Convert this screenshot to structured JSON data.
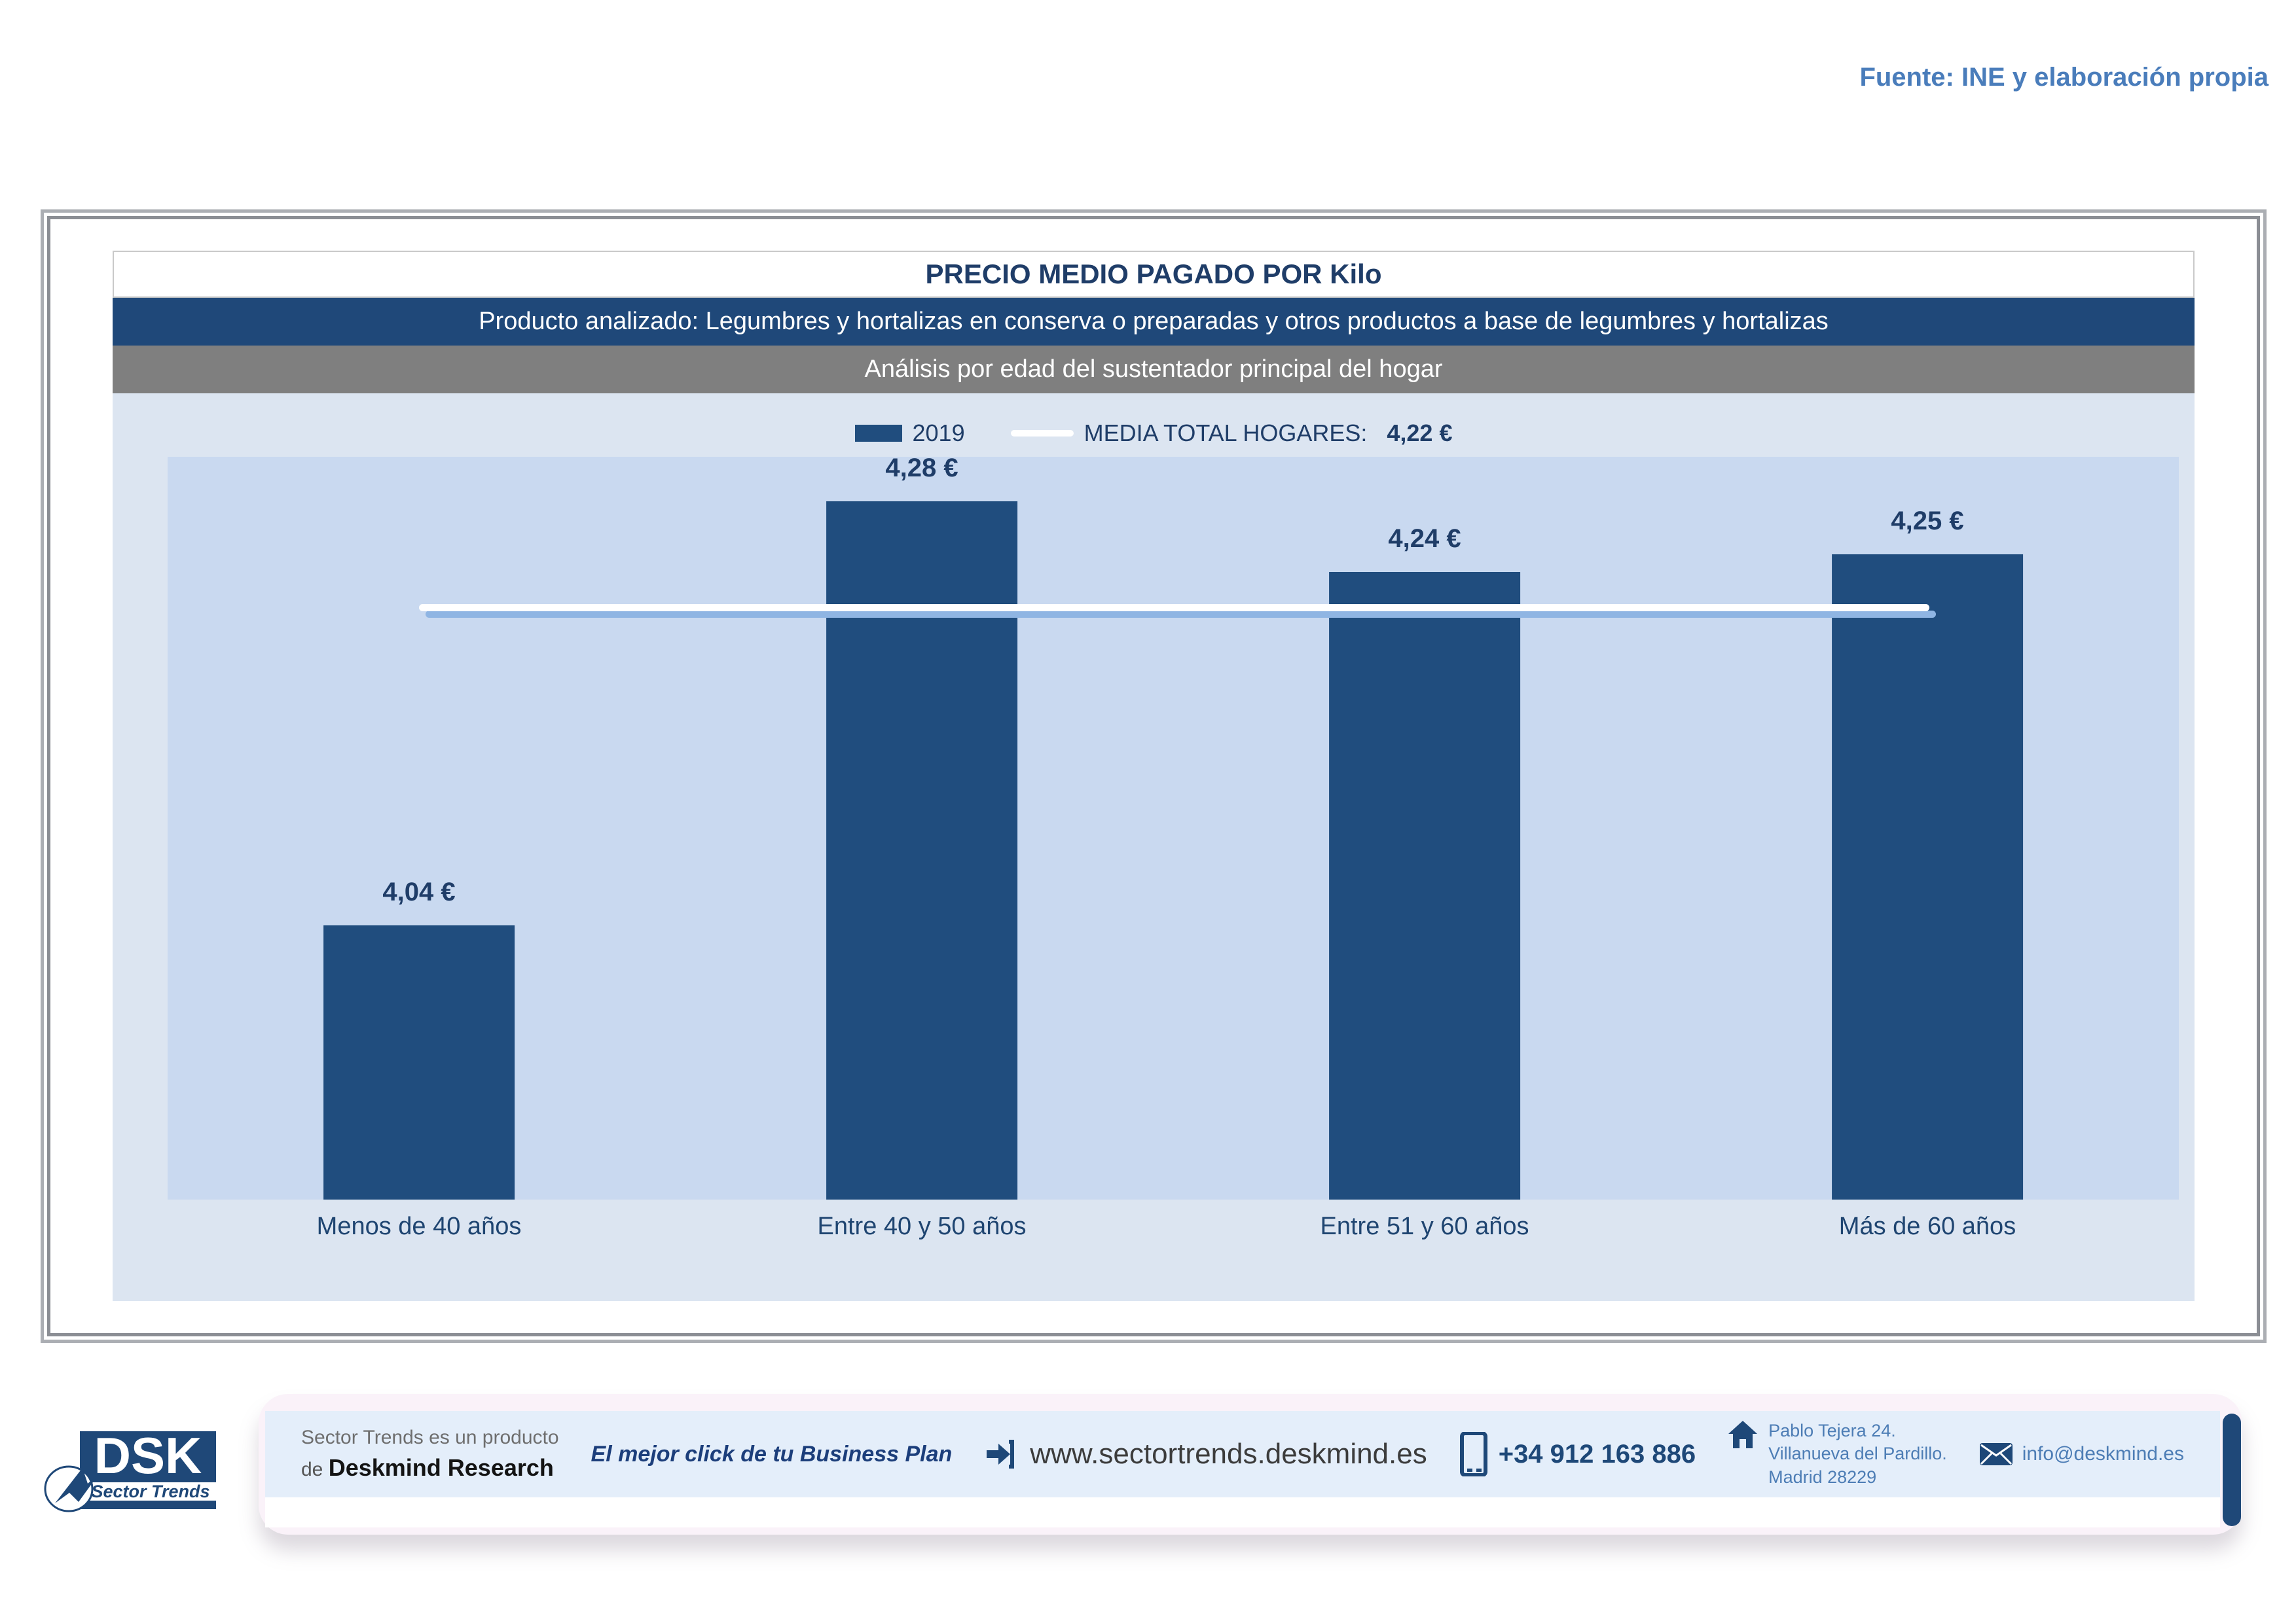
{
  "source_note": "Fuente: INE y elaboración propia",
  "header": {
    "title": "PRECIO MEDIO PAGADO POR Kilo",
    "product_banner": "Producto analizado: Legumbres y hortalizas en conserva o preparadas y otros productos a base de legumbres y hortalizas",
    "analysis_banner": "Análisis por edad del sustentador principal del hogar"
  },
  "legend": {
    "series_label": "2019",
    "media_label": "MEDIA TOTAL  HOGARES:",
    "media_value": "4,22 €"
  },
  "chart_data": {
    "type": "bar",
    "title": "PRECIO MEDIO PAGADO POR Kilo",
    "categories": [
      "Menos de 40 años",
      "Entre 40 y 50 años",
      "Entre 51  y 60 años",
      "Más de 60 años"
    ],
    "series": [
      {
        "name": "2019",
        "values": [
          4.04,
          4.28,
          4.24,
          4.25
        ]
      }
    ],
    "value_labels": [
      "4,04 €",
      "4,28 €",
      "4,24 €",
      "4,25 €"
    ],
    "media_line": {
      "label": "MEDIA TOTAL  HOGARES:",
      "value": 4.22,
      "display": "4,22 €"
    },
    "xlabel": "",
    "ylabel": "",
    "ylim": [
      3.885,
      4.305
    ],
    "y_axis_hidden": true,
    "grid": false,
    "legend_position": "top-center",
    "colors": {
      "bar": "#204d7e",
      "media_line": "#ffffff",
      "media_line_shadow": "#8fb5e3",
      "plot_bg": "#c9d9f0",
      "chart_bg": "#dce5f1",
      "banner_blue": "#1f4879",
      "banner_gray": "#7f7f7f",
      "text_navy": "#1f3d68"
    }
  },
  "footer": {
    "logo": {
      "abbr": "DSK",
      "tagline": "Sector Trends"
    },
    "product_line1": "Sector Trends es un producto",
    "product_line2_prefix": "de ",
    "product_line2_brand": "Deskmind Research",
    "slogan": "El mejor click de tu Business Plan",
    "website": "www.sectortrends.deskmind.es",
    "phone": "+34 912 163 886",
    "address_line1": "Pablo Tejera 24.",
    "address_line2": "Villanueva del Pardillo.",
    "address_line3": "Madrid 28229",
    "email": "info@deskmind.es"
  }
}
